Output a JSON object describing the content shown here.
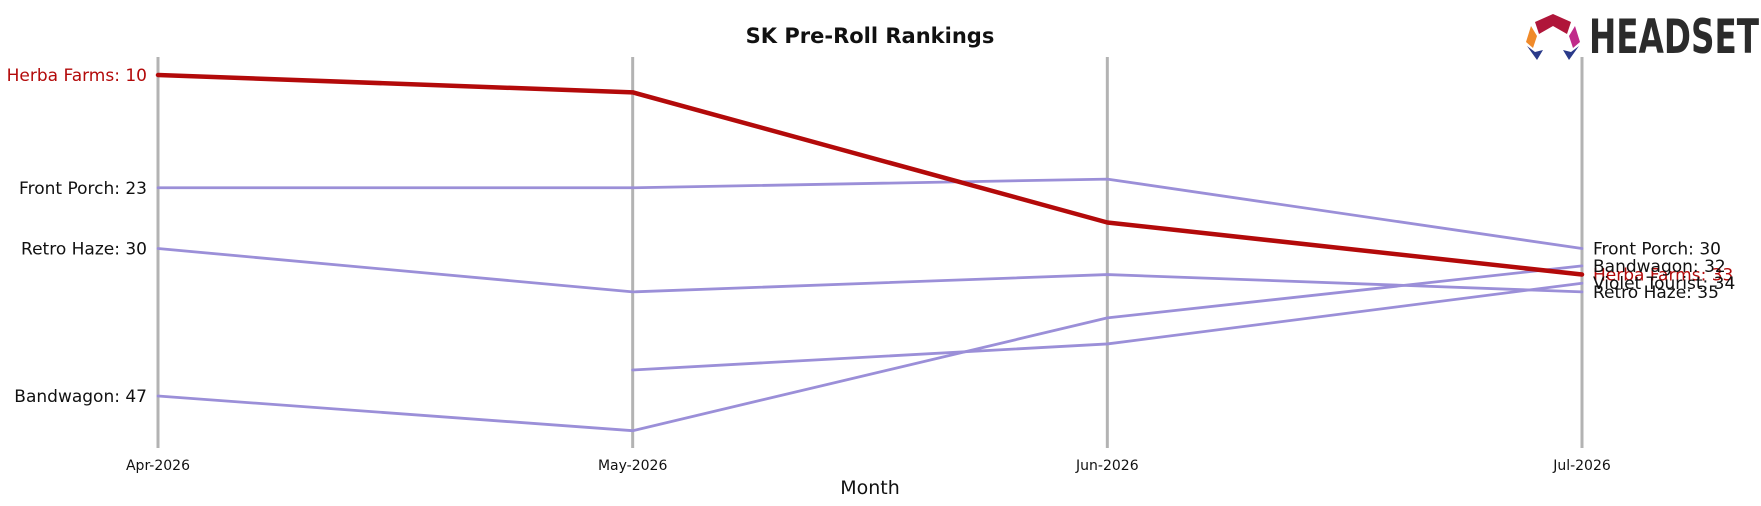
{
  "chart_data": {
    "type": "line",
    "title": "SK Pre-Roll Rankings",
    "xlabel": "Month",
    "ylabel": "",
    "categories": [
      "Apr-2026",
      "May-2026",
      "Jun-2026",
      "Jul-2026"
    ],
    "y_inverted": true,
    "ylim": [
      52,
      8
    ],
    "grid": "vertical lines at each month",
    "series": [
      {
        "name": "Herba Farms",
        "values": [
          10,
          12,
          27,
          33
        ],
        "color": "#b30a0a",
        "highlight": true
      },
      {
        "name": "Front Porch",
        "values": [
          23,
          23,
          22,
          30
        ],
        "color": "#9b8fd8",
        "highlight": false
      },
      {
        "name": "Retro Haze",
        "values": [
          30,
          35,
          33,
          35
        ],
        "color": "#9b8fd8",
        "highlight": false
      },
      {
        "name": "Bandwagon",
        "values": [
          47,
          51,
          38,
          32
        ],
        "color": "#9b8fd8",
        "highlight": false
      },
      {
        "name": "Violet Tourist",
        "values": [
          null,
          44,
          41,
          34
        ],
        "color": "#9b8fd8",
        "highlight": false
      }
    ]
  },
  "logo": {
    "text": "HEADSET"
  }
}
